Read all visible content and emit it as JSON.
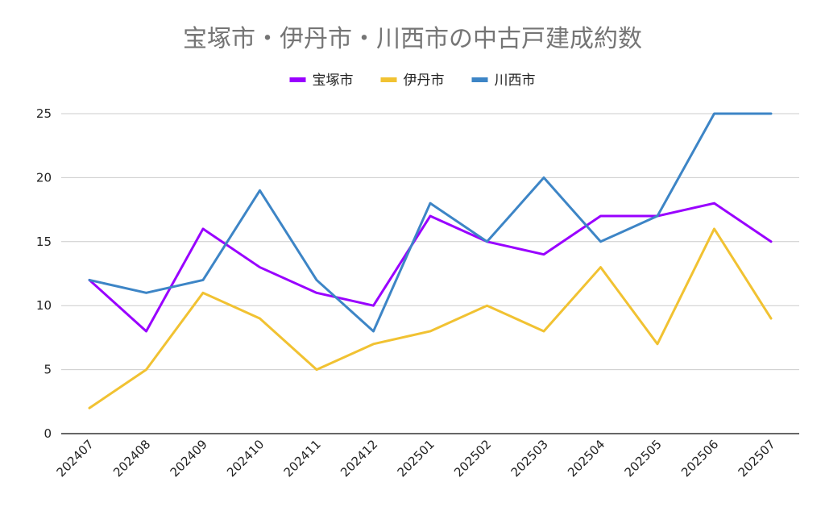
{
  "chart_data": {
    "type": "line",
    "title": "宝塚市・伊丹市・川西市の中古戸建成約数",
    "xlabel": "",
    "ylabel": "",
    "ylim": [
      0,
      25
    ],
    "yticks": [
      "0",
      "5",
      "10",
      "15",
      "20",
      "25"
    ],
    "grid": true,
    "legend_position": "top",
    "categories": [
      "202407",
      "202408",
      "202409",
      "202410",
      "202411",
      "202412",
      "202501",
      "202502",
      "202503",
      "202504",
      "202505",
      "202506",
      "202507"
    ],
    "series": [
      {
        "name": "宝塚市",
        "color": "#9900ff",
        "values": [
          12,
          8,
          16,
          13,
          11,
          10,
          17,
          15,
          14,
          17,
          17,
          18,
          15
        ]
      },
      {
        "name": "伊丹市",
        "color": "#f1c232",
        "values": [
          2,
          5,
          11,
          9,
          5,
          7,
          8,
          10,
          8,
          13,
          7,
          16,
          9
        ]
      },
      {
        "name": "川西市",
        "color": "#3d85c6",
        "values": [
          12,
          11,
          12,
          19,
          12,
          8,
          18,
          15,
          20,
          15,
          17,
          25,
          25
        ]
      }
    ]
  }
}
